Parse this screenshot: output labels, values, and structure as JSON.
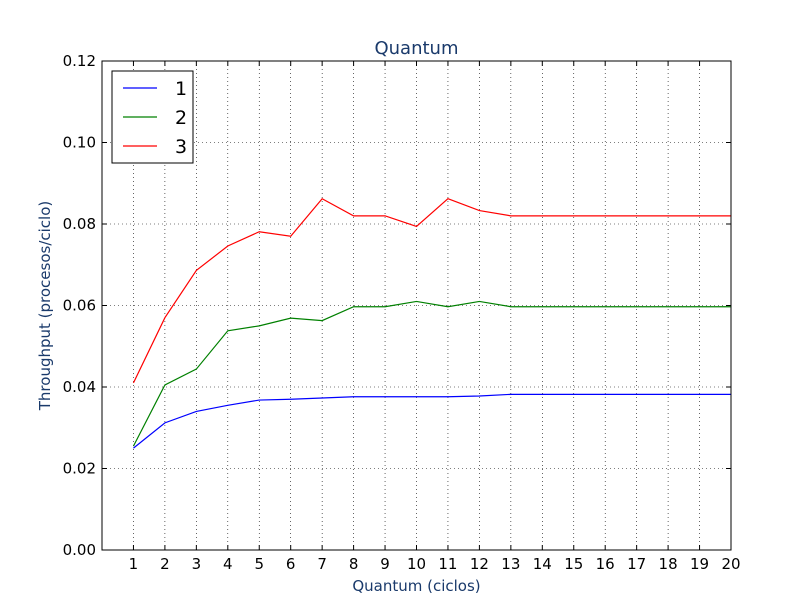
{
  "chart_data": {
    "type": "line",
    "title": "Quantum",
    "xlabel": "Quantum (ciclos)",
    "ylabel": "Throughput (procesos/ciclo)",
    "x": [
      1,
      2,
      3,
      4,
      5,
      6,
      7,
      8,
      9,
      10,
      11,
      12,
      13,
      14,
      15,
      16,
      17,
      18,
      19,
      20
    ],
    "xlim": [
      0,
      20
    ],
    "ylim": [
      0.0,
      0.12
    ],
    "yticks": [
      "0.00",
      "0.02",
      "0.04",
      "0.06",
      "0.08",
      "0.10",
      "0.12"
    ],
    "xticks": [
      "1",
      "2",
      "3",
      "4",
      "5",
      "6",
      "7",
      "8",
      "9",
      "10",
      "11",
      "12",
      "13",
      "14",
      "15",
      "16",
      "17",
      "18",
      "19",
      "20"
    ],
    "grid": true,
    "legend_position": "top-left",
    "series": [
      {
        "name": "1",
        "color": "#0000ff",
        "values": [
          0.025,
          0.0312,
          0.034,
          0.0355,
          0.0368,
          0.037,
          0.0373,
          0.0376,
          0.0376,
          0.0376,
          0.0376,
          0.0378,
          0.0382,
          0.0382,
          0.0382,
          0.0382,
          0.0382,
          0.0382,
          0.0382,
          0.0382
        ]
      },
      {
        "name": "2",
        "color": "#008000",
        "values": [
          0.0255,
          0.0405,
          0.0444,
          0.0538,
          0.055,
          0.0569,
          0.0563,
          0.0597,
          0.0597,
          0.061,
          0.0597,
          0.061,
          0.0597,
          0.0597,
          0.0597,
          0.0597,
          0.0597,
          0.0597,
          0.0597,
          0.0597
        ]
      },
      {
        "name": "3",
        "color": "#ff0000",
        "values": [
          0.041,
          0.057,
          0.0686,
          0.0746,
          0.0781,
          0.077,
          0.0862,
          0.082,
          0.082,
          0.0794,
          0.0862,
          0.0833,
          0.082,
          0.082,
          0.082,
          0.082,
          0.082,
          0.082,
          0.082,
          0.082
        ]
      }
    ]
  }
}
